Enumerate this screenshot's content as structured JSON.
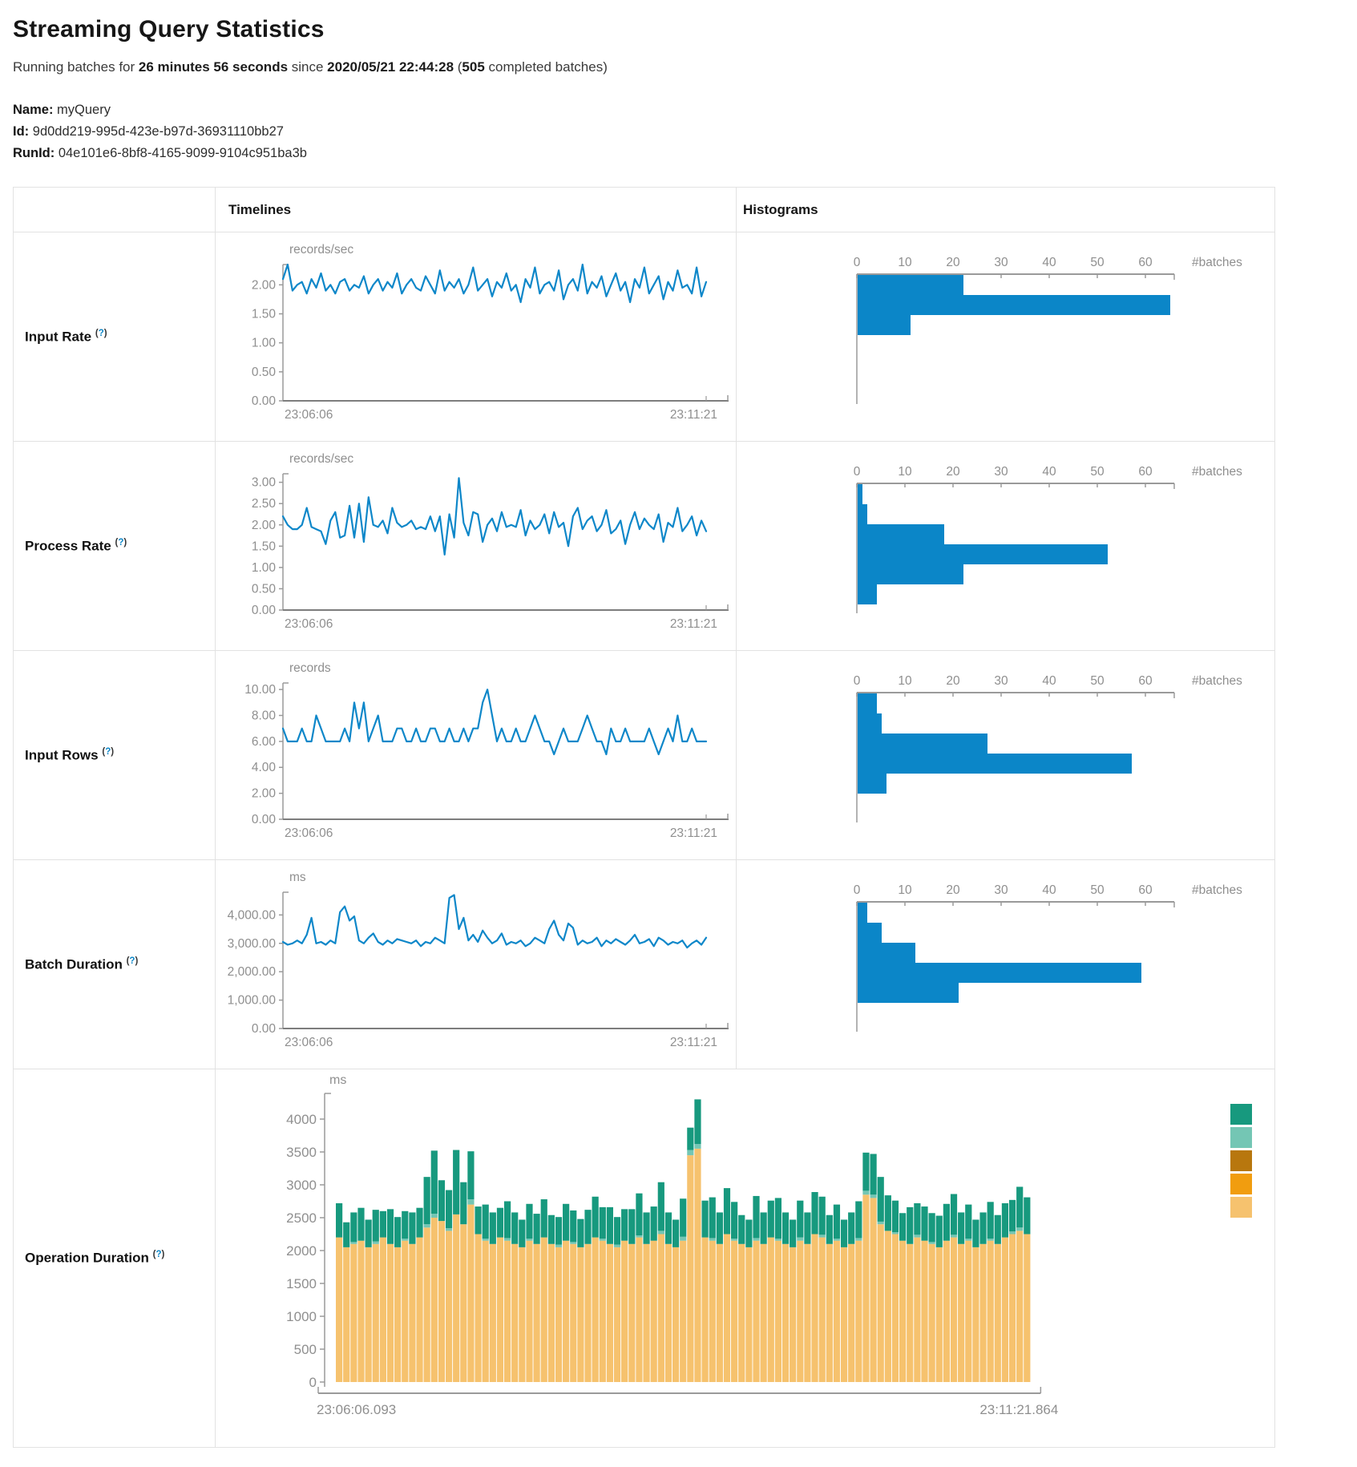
{
  "page": {
    "title": "Streaming Query Statistics",
    "subtitle": {
      "prefix": "Running batches for ",
      "duration": "26 minutes 56 seconds",
      "since": " since ",
      "start_time": "2020/05/21 22:44:28",
      "paren": " (",
      "completed_count": "505",
      "suffix": " completed batches)"
    },
    "meta": {
      "name_label": "Name:",
      "name_value": "myQuery",
      "id_label": "Id:",
      "id_value": "9d0dd219-995d-423e-b97d-36931110bb27",
      "runid_label": "RunId:",
      "runid_value": "04e101e6-8bf8-4165-9099-9104c951ba3b"
    }
  },
  "colors": {
    "line": "#0e87c9",
    "bar": "#0b86c8",
    "axis": "#9a9a9a",
    "axis_strong": "#7d7d7d",
    "tick_text": "#8f8f8f"
  },
  "table": {
    "headers": {
      "timelines": "Timelines",
      "histograms": "Histograms"
    },
    "help": {
      "open": "(",
      "q": "?",
      "close": ")"
    },
    "rows": [
      {
        "label": "Input Rate",
        "timeline": 0,
        "histogram": 1
      },
      {
        "label": "Process Rate",
        "timeline": 2,
        "histogram": 3
      },
      {
        "label": "Input Rows",
        "timeline": 4,
        "histogram": 5
      },
      {
        "label": "Batch Duration",
        "timeline": 6,
        "histogram": 7
      },
      {
        "label": "Operation Duration",
        "stacked": 8
      }
    ]
  },
  "chart_data": [
    {
      "type": "line",
      "title": "Input Rate timeline",
      "ylabel": "records/sec",
      "x_start_label": "23:06:06",
      "x_end_label": "23:11:21",
      "yticks": [
        "2.00",
        "1.50",
        "1.00",
        "0.50",
        "0.00"
      ],
      "ytick_values": [
        2,
        1.5,
        1,
        0.5,
        0
      ],
      "ymax": 2.35,
      "values": [
        2.1,
        2.35,
        1.9,
        2.0,
        2.05,
        1.85,
        2.1,
        1.95,
        2.2,
        1.9,
        2.0,
        1.85,
        2.05,
        2.1,
        1.9,
        2.0,
        1.95,
        2.15,
        1.85,
        2.0,
        2.1,
        1.9,
        2.05,
        1.95,
        2.2,
        1.85,
        2.0,
        2.1,
        1.95,
        1.9,
        2.15,
        2.0,
        1.85,
        2.25,
        1.9,
        2.05,
        1.95,
        2.1,
        1.85,
        2.0,
        2.3,
        1.9,
        2.0,
        2.1,
        1.8,
        2.05,
        1.95,
        2.2,
        1.9,
        2.0,
        1.7,
        2.1,
        1.95,
        2.3,
        1.85,
        2.0,
        2.05,
        1.9,
        2.25,
        1.75,
        2.0,
        2.1,
        1.9,
        2.35,
        1.85,
        2.05,
        1.95,
        2.15,
        1.8,
        2.0,
        2.2,
        1.9,
        2.05,
        1.7,
        2.1,
        1.95,
        2.3,
        1.85,
        2.0,
        2.15,
        1.75,
        2.05,
        1.9,
        2.25,
        1.95,
        2.0,
        1.85,
        2.3,
        1.8,
        2.05
      ]
    },
    {
      "type": "bar-horizontal",
      "title": "Input Rate histogram",
      "xlabel": "#batches",
      "xticks": [
        "0",
        "10",
        "20",
        "30",
        "40",
        "50",
        "60"
      ],
      "xmax": 66,
      "values": [
        22,
        65,
        11
      ]
    },
    {
      "type": "line",
      "title": "Process Rate timeline",
      "ylabel": "records/sec",
      "x_start_label": "23:06:06",
      "x_end_label": "23:11:21",
      "yticks": [
        "3.00",
        "2.50",
        "2.00",
        "1.50",
        "1.00",
        "0.50",
        "0.00"
      ],
      "ytick_values": [
        3,
        2.5,
        2,
        1.5,
        1,
        0.5,
        0
      ],
      "ymax": 3.2,
      "values": [
        2.2,
        2.0,
        1.9,
        1.9,
        2.0,
        2.4,
        1.95,
        1.9,
        1.85,
        1.55,
        2.1,
        2.3,
        1.7,
        1.75,
        2.45,
        1.7,
        2.5,
        1.6,
        2.65,
        2.0,
        1.95,
        2.1,
        1.8,
        2.4,
        2.05,
        1.95,
        2.0,
        2.1,
        1.9,
        1.95,
        1.9,
        2.2,
        1.85,
        2.2,
        1.3,
        2.25,
        1.7,
        3.1,
        2.05,
        1.75,
        2.3,
        2.25,
        1.6,
        2.0,
        2.15,
        1.85,
        2.3,
        1.95,
        2.0,
        1.95,
        2.35,
        1.75,
        2.1,
        1.9,
        2.0,
        2.25,
        1.8,
        2.3,
        1.95,
        2.05,
        1.5,
        2.2,
        2.4,
        1.9,
        2.1,
        2.2,
        1.85,
        2.0,
        2.35,
        1.8,
        1.9,
        2.1,
        1.55,
        2.0,
        2.3,
        1.9,
        2.15,
        2.0,
        1.9,
        2.25,
        1.6,
        2.05,
        1.95,
        2.4,
        1.85,
        2.0,
        2.2,
        1.75,
        2.1,
        1.85
      ]
    },
    {
      "type": "bar-horizontal",
      "title": "Process Rate histogram",
      "xlabel": "#batches",
      "xticks": [
        "0",
        "10",
        "20",
        "30",
        "40",
        "50",
        "60"
      ],
      "xmax": 66,
      "values": [
        1,
        2,
        18,
        52,
        22,
        4
      ]
    },
    {
      "type": "line",
      "title": "Input Rows timeline",
      "ylabel": "records",
      "x_start_label": "23:06:06",
      "x_end_label": "23:11:21",
      "yticks": [
        "10.00",
        "8.00",
        "6.00",
        "4.00",
        "2.00",
        "0.00"
      ],
      "ytick_values": [
        10,
        8,
        6,
        4,
        2,
        0
      ],
      "ymax": 10.5,
      "values": [
        7,
        6,
        6,
        6,
        7,
        6,
        6,
        8,
        7,
        6,
        6,
        6,
        6,
        7,
        6,
        9,
        7,
        9,
        6,
        7,
        8,
        6,
        6,
        6,
        7,
        7,
        6,
        6,
        7,
        6,
        6,
        7,
        7,
        6,
        6,
        7,
        6,
        6,
        7,
        6,
        7,
        7,
        9,
        10,
        8,
        6,
        7,
        6,
        6,
        7,
        6,
        6,
        7,
        8,
        7,
        6,
        6,
        5,
        6,
        7,
        6,
        6,
        6,
        7,
        8,
        7,
        6,
        6,
        5,
        7,
        6,
        6,
        7,
        6,
        6,
        6,
        6,
        7,
        6,
        5,
        6,
        7,
        6,
        8,
        6,
        6,
        7,
        6,
        6,
        6
      ]
    },
    {
      "type": "bar-horizontal",
      "title": "Input Rows histogram",
      "xlabel": "#batches",
      "xticks": [
        "0",
        "10",
        "20",
        "30",
        "40",
        "50",
        "60"
      ],
      "xmax": 66,
      "values": [
        4,
        5,
        27,
        57,
        6
      ]
    },
    {
      "type": "line",
      "title": "Batch Duration timeline",
      "ylabel": "ms",
      "x_start_label": "23:06:06",
      "x_end_label": "23:11:21",
      "yticks": [
        "4,000.00",
        "3,000.00",
        "2,000.00",
        "1,000.00",
        "0.00"
      ],
      "ytick_values": [
        4000,
        3000,
        2000,
        1000,
        0
      ],
      "ymax": 4800,
      "values": [
        3050,
        2950,
        3000,
        3100,
        3000,
        3300,
        3900,
        3000,
        3050,
        2950,
        3100,
        3000,
        4100,
        4300,
        3800,
        3950,
        3100,
        3000,
        3200,
        3350,
        3050,
        2950,
        3100,
        3000,
        3150,
        3100,
        3050,
        3000,
        3100,
        2900,
        3050,
        3000,
        3200,
        3100,
        3000,
        4600,
        4700,
        3500,
        3900,
        3100,
        3300,
        3050,
        3450,
        3200,
        3000,
        3100,
        3350,
        2950,
        3050,
        3000,
        3100,
        2900,
        3000,
        3200,
        3100,
        3000,
        3500,
        3800,
        3300,
        3100,
        3700,
        3550,
        2950,
        3100,
        3000,
        3050,
        3200,
        2900,
        3100,
        3000,
        3150,
        3050,
        2950,
        3100,
        3300,
        3000,
        3050,
        3150,
        2900,
        3200,
        3100,
        2950,
        3050,
        3000,
        3100,
        2850,
        3000,
        3100,
        2950,
        3200
      ]
    },
    {
      "type": "bar-horizontal",
      "title": "Batch Duration histogram",
      "xlabel": "#batches",
      "xticks": [
        "0",
        "10",
        "20",
        "30",
        "40",
        "50",
        "60"
      ],
      "xmax": 66,
      "values": [
        2,
        5,
        12,
        59,
        21
      ]
    },
    {
      "type": "bar",
      "stacked": true,
      "title": "Operation Duration",
      "ylabel": "ms",
      "x_start_label": "23:06:06.093",
      "x_end_label": "23:11:21.864",
      "yticks": [
        "4000",
        "3500",
        "3000",
        "2500",
        "2000",
        "1500",
        "1000",
        "500",
        "0"
      ],
      "ytick_values": [
        4000,
        3500,
        3000,
        2500,
        2000,
        1500,
        1000,
        500,
        0
      ],
      "ymax": 4350,
      "legend_colors": [
        "#17997e",
        "#74c6b4",
        "#b8770e",
        "#f19d0f",
        "#f6c26e"
      ],
      "series": [
        {
          "color": "#f6c26e",
          "values": [
            2200,
            2050,
            2100,
            2150,
            2050,
            2100,
            2200,
            2100,
            2050,
            2150,
            2100,
            2200,
            2350,
            2500,
            2450,
            2300,
            2550,
            2400,
            2700,
            2250,
            2150,
            2100,
            2200,
            2150,
            2100,
            2050,
            2150,
            2100,
            2200,
            2100,
            2050,
            2150,
            2100,
            2050,
            2100,
            2200,
            2150,
            2100,
            2050,
            2150,
            2100,
            2200,
            2100,
            2150,
            2250,
            2100,
            2050,
            2150,
            3450,
            3550,
            2200,
            2150,
            2100,
            2250,
            2150,
            2100,
            2050,
            2150,
            2100,
            2200,
            2150,
            2100,
            2050,
            2150,
            2100,
            2250,
            2200,
            2100,
            2150,
            2050,
            2100,
            2150,
            2850,
            2800,
            2400,
            2300,
            2250,
            2150,
            2100,
            2200,
            2150,
            2100,
            2050,
            2150,
            2200,
            2100,
            2150,
            2050,
            2100,
            2150,
            2100,
            2200,
            2250,
            2300,
            2250
          ]
        },
        {
          "color": "#74c6b4",
          "values": [
            0,
            0,
            30,
            0,
            0,
            40,
            0,
            0,
            0,
            30,
            0,
            0,
            50,
            60,
            0,
            40,
            0,
            0,
            80,
            0,
            30,
            0,
            0,
            40,
            0,
            0,
            30,
            0,
            0,
            0,
            40,
            0,
            30,
            0,
            0,
            0,
            30,
            0,
            40,
            0,
            0,
            30,
            0,
            0,
            50,
            0,
            0,
            60,
            80,
            70,
            0,
            40,
            0,
            0,
            30,
            0,
            0,
            40,
            0,
            0,
            30,
            0,
            0,
            50,
            0,
            0,
            40,
            0,
            30,
            0,
            0,
            40,
            60,
            50,
            40,
            0,
            30,
            0,
            0,
            40,
            0,
            30,
            0,
            0,
            40,
            0,
            30,
            0,
            0,
            30,
            0,
            0,
            40,
            50,
            0
          ]
        },
        {
          "color": "#17997e",
          "values": [
            520,
            380,
            450,
            500,
            420,
            480,
            400,
            530,
            460,
            420,
            480,
            450,
            720,
            960,
            620,
            580,
            980,
            640,
            730,
            420,
            520,
            480,
            450,
            560,
            480,
            420,
            530,
            460,
            580,
            440,
            420,
            560,
            480,
            430,
            520,
            620,
            480,
            560,
            420,
            480,
            530,
            640,
            480,
            520,
            740,
            480,
            420,
            580,
            340,
            680,
            560,
            620,
            480,
            700,
            560,
            440,
            420,
            640,
            480,
            560,
            620,
            480,
            420,
            560,
            480,
            640,
            580,
            440,
            520,
            420,
            480,
            560,
            580,
            620,
            680,
            540,
            480,
            420,
            560,
            480,
            520,
            440,
            480,
            560,
            620,
            480,
            520,
            420,
            480,
            560,
            440,
            520,
            480,
            620,
            560
          ]
        }
      ]
    }
  ]
}
